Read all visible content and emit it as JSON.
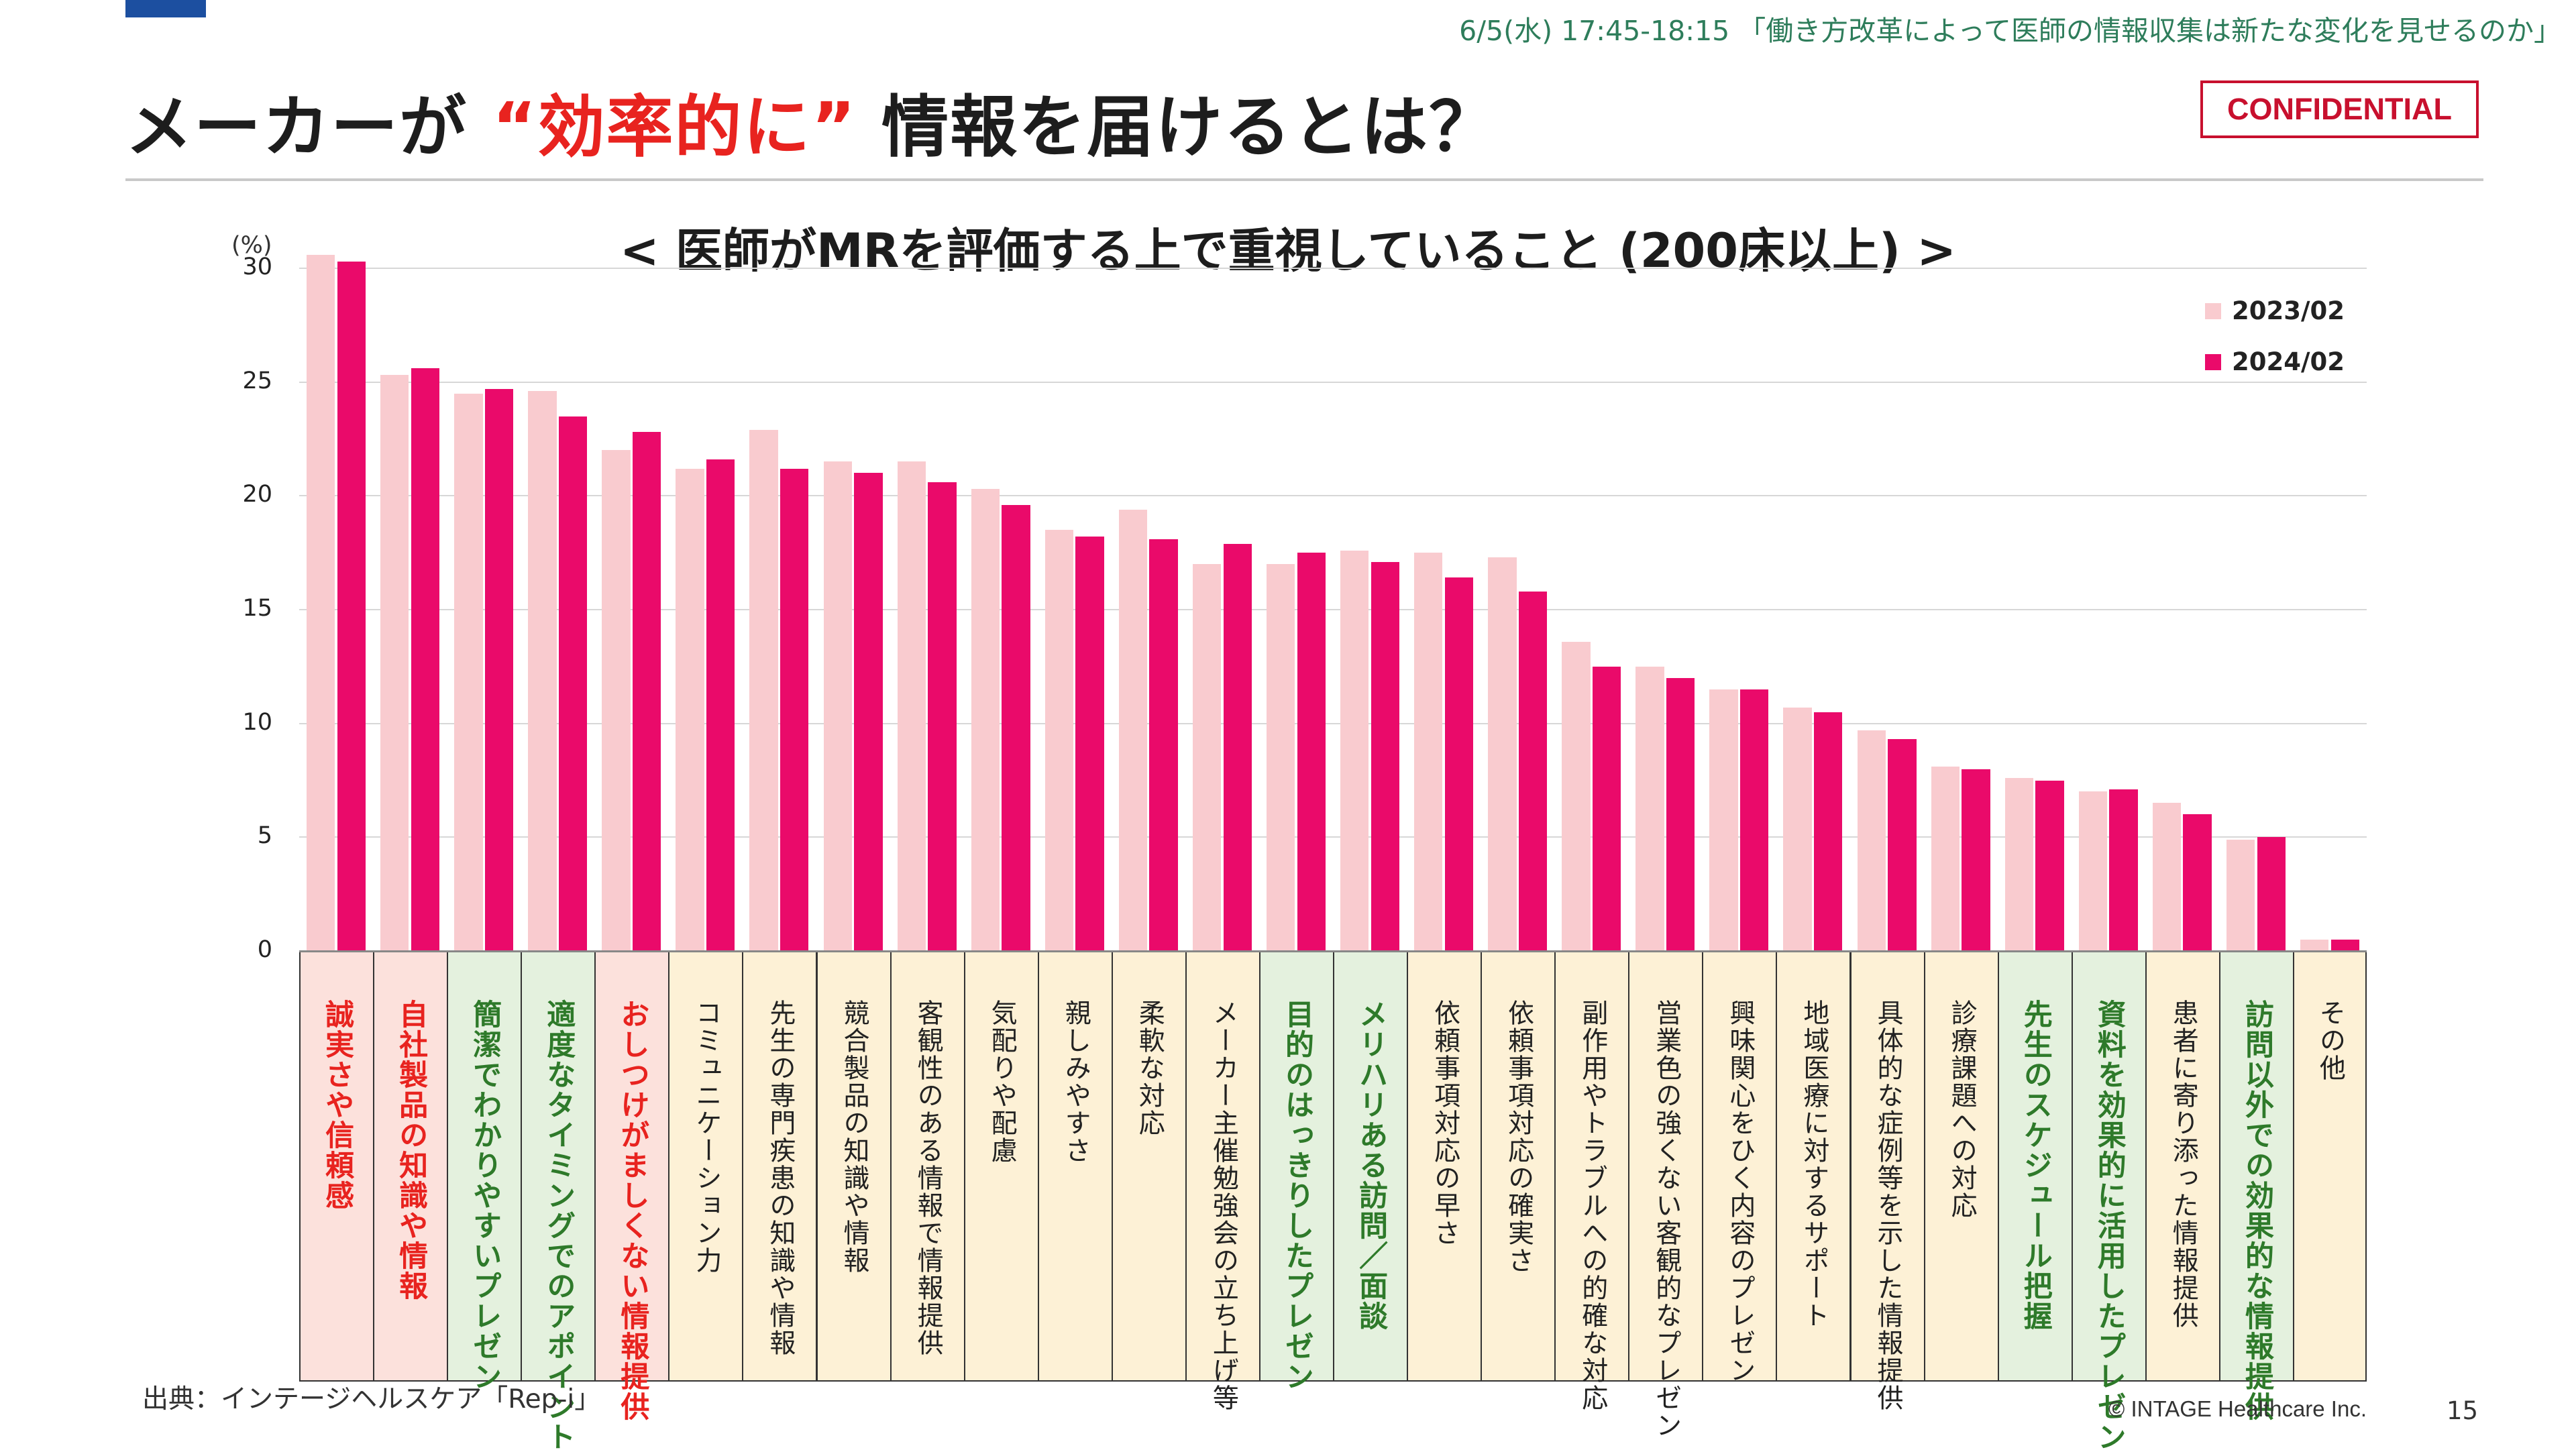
{
  "header": {
    "session": "6/5(水) 17:45-18:15 「働き方改革によって医師の情報収集は新たな変化を見せるのか」",
    "title_pre": "メーカーが ",
    "title_highlight": "“効率的に”",
    "title_post": " 情報を届けるとは？",
    "confidential": "CONFIDENTIAL"
  },
  "footer": {
    "source": "出典：インテージヘルスケア「Rep-i」",
    "copyright": "© INTAGE Healthcare Inc.",
    "page_number": "15"
  },
  "colors": {
    "series_2023": "#f9cbcf",
    "series_2024": "#ea0a6a",
    "highlight_red": "#e8231f",
    "cat_pink": "#fce1dc",
    "cat_green": "#e4f1de",
    "cat_cream": "#fdf1d6"
  },
  "chart_data": {
    "type": "bar",
    "title": "< 医師がMRを評価する上で重視していること (200床以上) >",
    "ylabel": "(%)",
    "ylim": [
      0,
      30
    ],
    "yticks": [
      "0",
      "5",
      "10",
      "15",
      "20",
      "25",
      "30"
    ],
    "legend_position": "top-right",
    "categories": [
      {
        "label": "誠実さや信頼感",
        "fill": "pink",
        "style": "red"
      },
      {
        "label": "自社製品の知識や情報",
        "fill": "pink",
        "style": "red"
      },
      {
        "label": "簡潔でわかりやすいプレゼン",
        "fill": "green",
        "style": "green"
      },
      {
        "label": "適度なタイミングでのアポイント",
        "fill": "green",
        "style": "green"
      },
      {
        "label": "おしつけがましくない情報提供",
        "fill": "pink",
        "style": "red"
      },
      {
        "label": "コミュニケーション力",
        "fill": "cream",
        "style": "normal"
      },
      {
        "label": "先生の専門疾患の知識や情報",
        "fill": "cream",
        "style": "normal"
      },
      {
        "label": "競合製品の知識や情報",
        "fill": "cream",
        "style": "normal"
      },
      {
        "label": "客観性のある情報で情報提供",
        "fill": "cream",
        "style": "normal"
      },
      {
        "label": "気配りや配慮",
        "fill": "cream",
        "style": "normal"
      },
      {
        "label": "親しみやすさ",
        "fill": "cream",
        "style": "normal"
      },
      {
        "label": "柔軟な対応",
        "fill": "cream",
        "style": "normal"
      },
      {
        "label": "メーカー主催勉強会の立ち上げ等",
        "fill": "cream",
        "style": "normal"
      },
      {
        "label": "目的のはっきりしたプレゼン",
        "fill": "green",
        "style": "green"
      },
      {
        "label": "メリハリある訪問／面談",
        "fill": "green",
        "style": "green"
      },
      {
        "label": "依頼事項対応の早さ",
        "fill": "cream",
        "style": "normal"
      },
      {
        "label": "依頼事項対応の確実さ",
        "fill": "cream",
        "style": "normal"
      },
      {
        "label": "副作用やトラブルへの的確な対応",
        "fill": "cream",
        "style": "normal"
      },
      {
        "label": "営業色の強くない客観的なプレゼン",
        "fill": "cream",
        "style": "normal"
      },
      {
        "label": "興味関心をひく内容のプレゼン",
        "fill": "cream",
        "style": "normal"
      },
      {
        "label": "地域医療に対するサポート",
        "fill": "cream",
        "style": "normal"
      },
      {
        "label": "具体的な症例等を示した情報提供",
        "fill": "cream",
        "style": "normal"
      },
      {
        "label": "診療課題への対応",
        "fill": "cream",
        "style": "normal"
      },
      {
        "label": "先生のスケジュール把握",
        "fill": "green",
        "style": "green"
      },
      {
        "label": "資料を効果的に活用したプレゼン",
        "fill": "green",
        "style": "green"
      },
      {
        "label": "患者に寄り添った情報提供",
        "fill": "cream",
        "style": "normal"
      },
      {
        "label": "訪問以外での効果的な情報提供",
        "fill": "green",
        "style": "green"
      },
      {
        "label": "その他",
        "fill": "cream",
        "style": "normal"
      }
    ],
    "series": [
      {
        "name": "2023/02",
        "values": [
          30.6,
          25.3,
          24.5,
          24.6,
          22.0,
          21.2,
          22.9,
          21.5,
          21.5,
          20.3,
          18.5,
          19.4,
          17.0,
          17.0,
          17.6,
          17.5,
          17.3,
          13.6,
          12.5,
          11.5,
          10.7,
          9.7,
          8.1,
          7.6,
          7.0,
          6.5,
          4.9,
          0.5
        ]
      },
      {
        "name": "2024/02",
        "values": [
          30.3,
          25.6,
          24.7,
          23.5,
          22.8,
          21.6,
          21.2,
          21.0,
          20.6,
          19.6,
          18.2,
          18.1,
          17.9,
          17.5,
          17.1,
          16.4,
          15.8,
          12.5,
          12.0,
          11.5,
          10.5,
          9.3,
          8.0,
          7.5,
          7.1,
          6.0,
          5.0,
          0.5
        ]
      }
    ]
  }
}
